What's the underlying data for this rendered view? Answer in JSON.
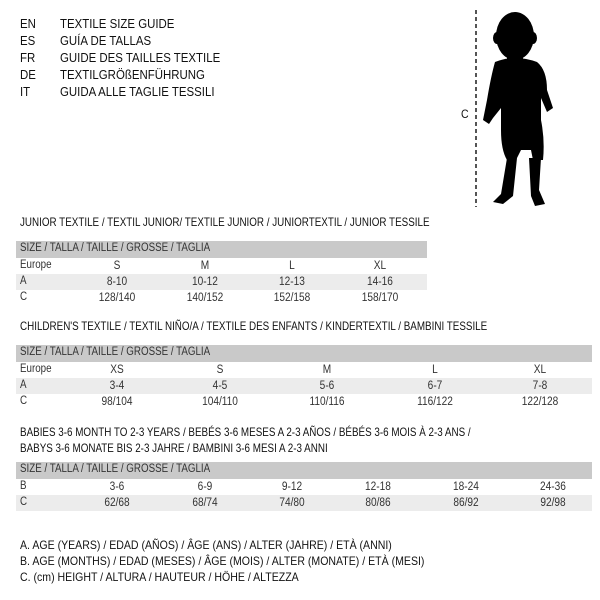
{
  "languages": [
    {
      "code": "EN",
      "title": "TEXTILE SIZE GUIDE"
    },
    {
      "code": "ES",
      "title": "GUÍA DE TALLAS"
    },
    {
      "code": "FR",
      "title": "GUIDE DES TAILLES TEXTILE"
    },
    {
      "code": "DE",
      "title": "TEXTILGRÖßENFÜHRUNG"
    },
    {
      "code": "IT",
      "title": "GUIDA ALLE TAGLIE TESSILI"
    }
  ],
  "figure": {
    "measure_label": "C",
    "icon": "child-silhouette"
  },
  "size_header": "SIZE / TALLA / TAILLE / GRÖSSE / TAGLIA",
  "junior": {
    "title": "JUNIOR TEXTILE / TEXTIL JUNIOR/ TEXTILE JUNIOR / JUNIORTEXTIL / JUNIOR TESSILE",
    "rows": [
      {
        "label": "Europe",
        "values": [
          "S",
          "M",
          "L",
          "XL"
        ]
      },
      {
        "label": "A",
        "values": [
          "8-10",
          "10-12",
          "12-13",
          "14-16"
        ]
      },
      {
        "label": "C",
        "values": [
          "128/140",
          "140/152",
          "152/158",
          "158/170"
        ]
      }
    ]
  },
  "children": {
    "title": "CHILDREN'S TEXTILE / TEXTIL NIÑO/A / TEXTILE DES ENFANTS / KINDERTEXTIL / BAMBINI TESSILE",
    "rows": [
      {
        "label": "Europe",
        "values": [
          "XS",
          "S",
          "M",
          "L",
          "XL"
        ]
      },
      {
        "label": "A",
        "values": [
          "3-4",
          "4-5",
          "5-6",
          "6-7",
          "7-8"
        ]
      },
      {
        "label": "C",
        "values": [
          "98/104",
          "104/110",
          "110/116",
          "116/122",
          "122/128"
        ]
      }
    ]
  },
  "babies": {
    "title_line1": "BABIES 3-6 MONTH TO 2-3 YEARS / BEBÉS 3-6 MESES A 2-3 AÑOS / BÉBÉS 3-6 MOIS À 2-3 ANS /",
    "title_line2": "BABYS 3-6 MONATE BIS 2-3 JAHRE / BAMBINI 3-6 MESI A 2-3 ANNI",
    "rows": [
      {
        "label": "B",
        "values": [
          "3-6",
          "6-9",
          "9-12",
          "12-18",
          "18-24",
          "24-36"
        ]
      },
      {
        "label": "C",
        "values": [
          "62/68",
          "68/74",
          "74/80",
          "80/86",
          "86/92",
          "92/98"
        ]
      }
    ]
  },
  "legend": [
    "A. AGE (YEARS) / EDAD (AÑOS) / ÂGE (ANS) / ALTER (JAHRE) / ETÀ (ANNI)",
    "B. AGE (MONTHS) / EDAD (MESES) / ÂGE (MOIS) / ALTER (MONATE) / ETÀ (MESI)",
    "C. (cm) HEIGHT / ALTURA / HAUTEUR / HÖHE / ALTEZZA"
  ]
}
